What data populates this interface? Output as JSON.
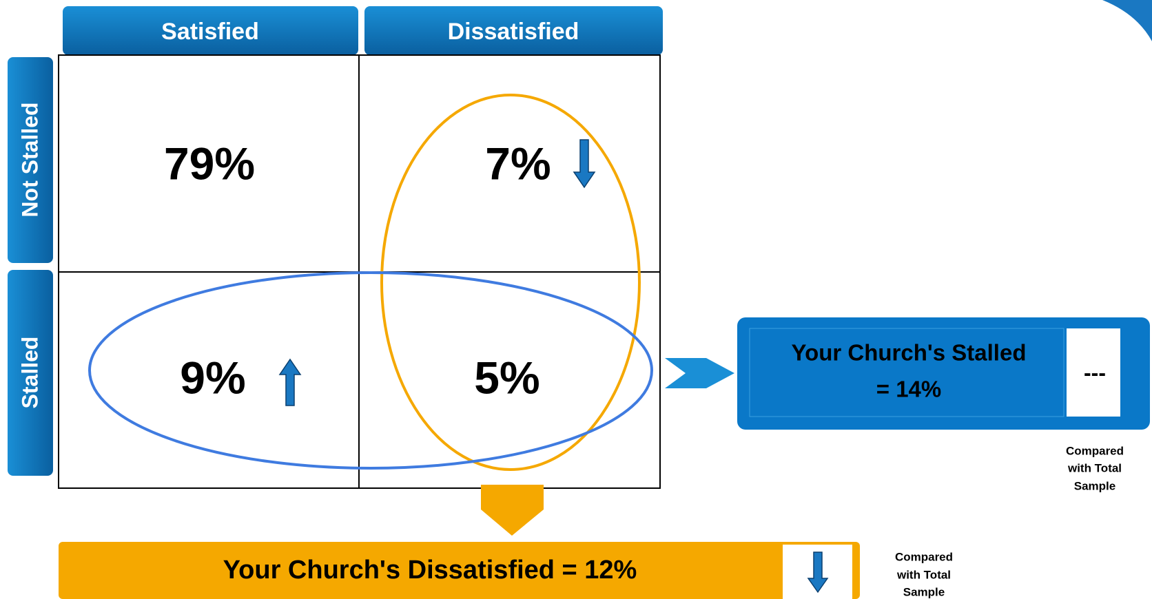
{
  "columns": [
    "Satisfied",
    "Dissatisfied"
  ],
  "rows": [
    "Not Stalled",
    "Stalled"
  ],
  "cells": [
    [
      "79%",
      "7%"
    ],
    [
      "9%",
      "5%"
    ]
  ],
  "stalled_box": {
    "lines": [
      "Your Church's Stalled",
      "= 14%"
    ],
    "comparison": "---",
    "note": [
      "Compared",
      "with Total",
      "Sample"
    ]
  },
  "dissatisfied_box": {
    "text": "Your Church's Dissatisfied = 12%",
    "note": [
      "Compared",
      "with Total",
      "Sample"
    ]
  }
}
